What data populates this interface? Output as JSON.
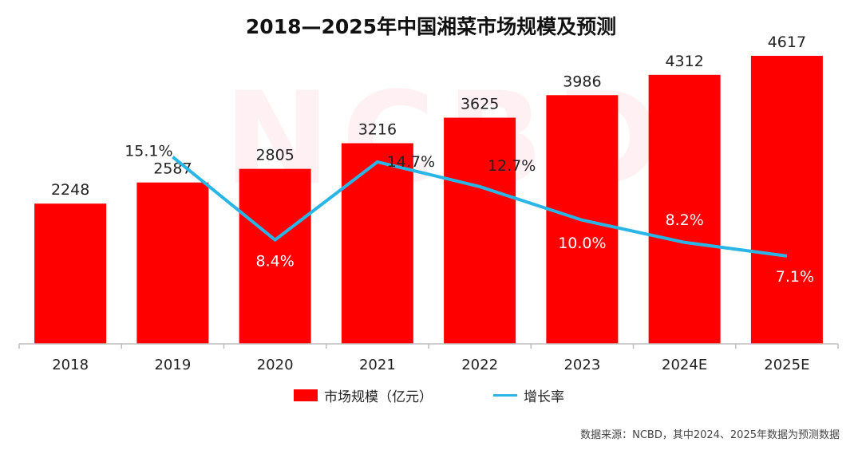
{
  "title": "2018—2025年中国湘菜市场规模及预测",
  "legend": {
    "bar_label": "市场规模（亿元）",
    "line_label": "增长率"
  },
  "source_note": "数据来源：NCBD，其中2024、2025年数据为预测数据",
  "watermark_text": "NCBD",
  "colors": {
    "bar": "#ff0000",
    "line": "#29b6e6",
    "axis": "#bfbfbf",
    "text": "#222222"
  },
  "chart_data": {
    "type": "bar",
    "categories": [
      "2018",
      "2019",
      "2020",
      "2021",
      "2022",
      "2023",
      "2024E",
      "2025E"
    ],
    "series": [
      {
        "name": "市场规模（亿元）",
        "type": "bar",
        "values": [
          2248,
          2587,
          2805,
          3216,
          3625,
          3986,
          4312,
          4617
        ],
        "labels": [
          "2248",
          "2587",
          "2805",
          "3216",
          "3625",
          "3986",
          "4312",
          "4617"
        ]
      },
      {
        "name": "增长率",
        "type": "line",
        "values": [
          null,
          15.1,
          8.4,
          14.7,
          12.7,
          10.0,
          8.2,
          7.1
        ],
        "labels": [
          "",
          "15.1%",
          "8.4%",
          "14.7%",
          "12.7%",
          "10.0%",
          "8.2%",
          "7.1%"
        ]
      }
    ],
    "bar_ylim": [
      0,
      5000
    ],
    "line_ylim": [
      0,
      25
    ],
    "grid": false,
    "legend_position": "bottom"
  }
}
